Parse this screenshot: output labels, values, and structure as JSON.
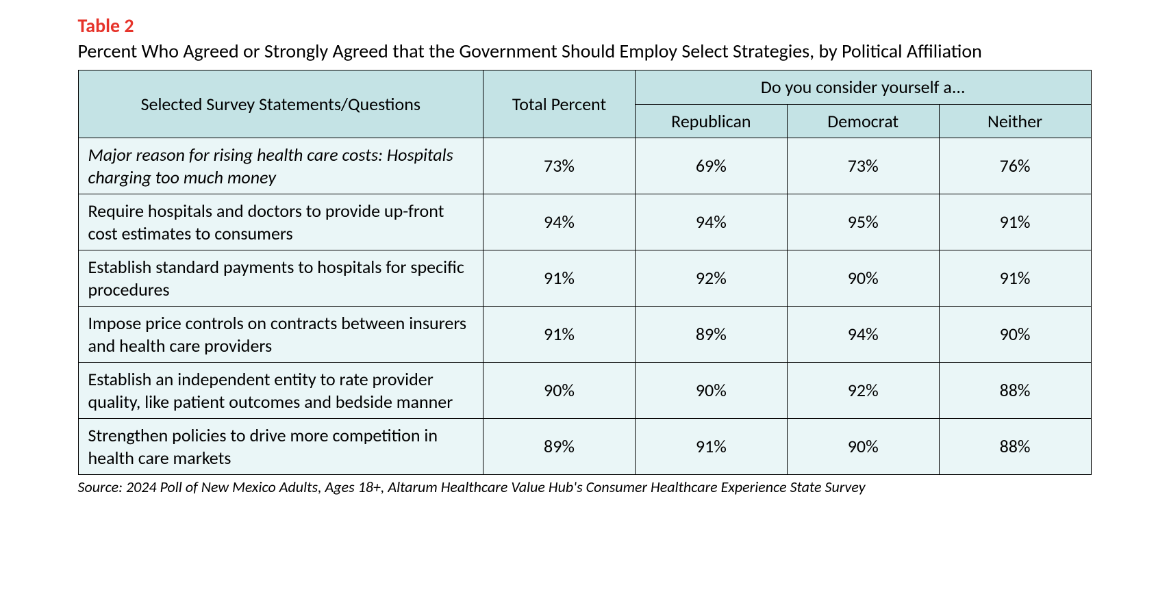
{
  "table": {
    "label": "Table 2",
    "title": "Percent Who Agreed or Strongly Agreed that the Government Should Employ Select Strategies, by Political Affiliation",
    "header": {
      "statements": "Selected Survey Statements/Questions",
      "total": "Total Percent",
      "group_question": "Do you consider yourself a...",
      "groups": [
        "Republican",
        "Democrat",
        "Neither"
      ]
    },
    "rows": [
      {
        "statement": "Major reason for rising health care costs: Hospitals charging too much money",
        "italic": true,
        "total": "73%",
        "v": [
          "69%",
          "73%",
          "76%"
        ]
      },
      {
        "statement": "Require hospitals and doctors to provide up-front cost estimates to consumers",
        "italic": false,
        "total": "94%",
        "v": [
          "94%",
          "95%",
          "91%"
        ]
      },
      {
        "statement": "Establish standard payments to hospitals for specific procedures",
        "italic": false,
        "total": "91%",
        "v": [
          "92%",
          "90%",
          "91%"
        ]
      },
      {
        "statement": "Impose price controls on contracts between insurers and health care providers",
        "italic": false,
        "total": "91%",
        "v": [
          "89%",
          "94%",
          "90%"
        ]
      },
      {
        "statement": "Establish an independent entity to rate provider quality, like patient outcomes and bedside manner",
        "italic": false,
        "total": "90%",
        "v": [
          "90%",
          "92%",
          "88%"
        ]
      },
      {
        "statement": "Strengthen policies to drive more competition in health care markets",
        "italic": false,
        "total": "89%",
        "v": [
          "91%",
          "90%",
          "88%"
        ]
      }
    ],
    "source": "Source: 2024 Poll of New Mexico Adults, Ages 18+, Altarum Healthcare Value Hub's Consumer Healthcare Experience State Survey",
    "colors": {
      "label_color": "#e6332a",
      "header_bg": "#c4e3e5",
      "body_bg": "#eaf6f7",
      "border": "#000000",
      "text": "#000000",
      "background": "#ffffff"
    },
    "typography": {
      "label_fontsize": 28,
      "title_fontsize": 28,
      "cell_fontsize": 26,
      "source_fontsize": 22,
      "label_weight": 600,
      "title_weight": 500
    }
  }
}
